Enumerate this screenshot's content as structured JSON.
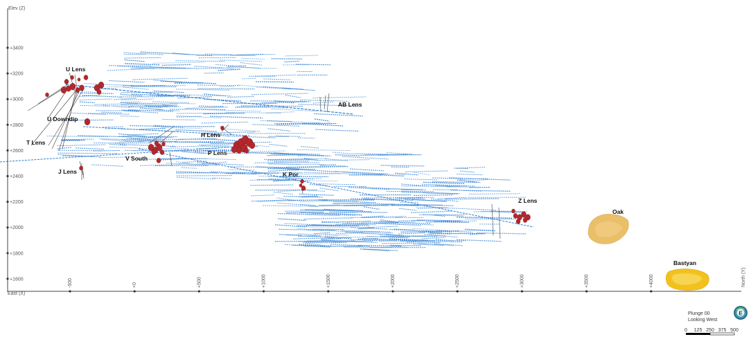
{
  "axes": {
    "vertical_title": "Elev (Z)",
    "horizontal_title": "East (X)",
    "depth_title": "North (Y)",
    "elevation_ticks": [
      "+3400",
      "+3200",
      "+3000",
      "+2800",
      "+2600",
      "+2400",
      "+2200",
      "+2000",
      "+1800",
      "+1600"
    ],
    "easting_ticks": [
      "-500",
      "+0",
      "+500",
      "+1000",
      "+1500",
      "+2000",
      "+2500",
      "+3000",
      "+3500",
      "+4000"
    ]
  },
  "deposits": [
    {
      "id": "u-lens",
      "label": "U Lens"
    },
    {
      "id": "ab-lens",
      "label": "AB Lens"
    },
    {
      "id": "u-downdip",
      "label": "U Downdip"
    },
    {
      "id": "h-lens",
      "label": "H Lens"
    },
    {
      "id": "t-lens",
      "label": "T Lens"
    },
    {
      "id": "p-lens",
      "label": "P Lens"
    },
    {
      "id": "v-south",
      "label": "V South"
    },
    {
      "id": "j-lens",
      "label": "J Lens"
    },
    {
      "id": "k-por",
      "label": "K Por"
    },
    {
      "id": "z-lens",
      "label": "Z Lens"
    },
    {
      "id": "oak",
      "label": "Oak"
    },
    {
      "id": "bastyan",
      "label": "Bastyan"
    }
  ],
  "view": {
    "plunge": "Plunge 00",
    "looking": "Looking West",
    "compass_letter": "E"
  },
  "scale_bar": {
    "ticks": [
      "0",
      "125",
      "250",
      "375",
      "500"
    ]
  },
  "colors": {
    "drillholes": "#2f7fd0",
    "lenses": "#b3282d",
    "oak": "#e8b95a",
    "bastyan": "#f2c21c",
    "axis": "#444444"
  }
}
